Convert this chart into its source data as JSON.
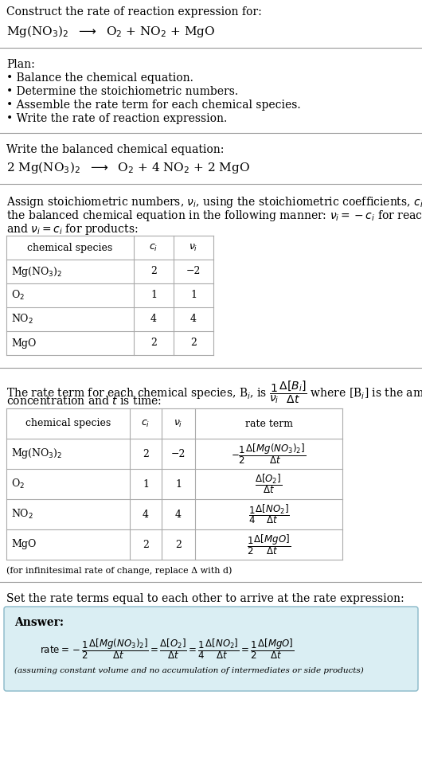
{
  "title_line1": "Construct the rate of reaction expression for:",
  "title_line2_plain": "Mg(NO",
  "plan_header": "Plan:",
  "plan_items": [
    "• Balance the chemical equation.",
    "• Determine the stoichiometric numbers.",
    "• Assemble the rate term for each chemical species.",
    "• Write the rate of reaction expression."
  ],
  "balanced_header": "Write the balanced chemical equation:",
  "balanced_eq": "2 Mg(NO$_3$)$_2$  $\\longrightarrow$  O$_2$ + 4 NO$_2$ + 2 MgO",
  "assign_text1": "Assign stoichiometric numbers, $\\nu_i$, using the stoichiometric coefficients, $c_i$, from",
  "assign_text2": "the balanced chemical equation in the following manner: $\\nu_i = -c_i$ for reactants",
  "assign_text3": "and $\\nu_i = c_i$ for products:",
  "table1_headers": [
    "chemical species",
    "$c_i$",
    "$\\nu_i$"
  ],
  "table1_rows": [
    [
      "Mg(NO$_3$)$_2$",
      "2",
      "−2"
    ],
    [
      "O$_2$",
      "1",
      "1"
    ],
    [
      "NO$_2$",
      "4",
      "4"
    ],
    [
      "MgO",
      "2",
      "2"
    ]
  ],
  "rate_text1": "The rate term for each chemical species, B$_i$, is $\\dfrac{1}{\\nu_i}\\dfrac{\\Delta[B_i]}{\\Delta t}$ where [B$_i$] is the amount",
  "rate_text2": "concentration and $t$ is time:",
  "table2_headers": [
    "chemical species",
    "$c_i$",
    "$\\nu_i$",
    "rate term"
  ],
  "table2_rows": [
    [
      "Mg(NO$_3$)$_2$",
      "2",
      "−2",
      "$-\\dfrac{1}{2}\\dfrac{\\Delta[Mg(NO_3)_2]}{\\Delta t}$"
    ],
    [
      "O$_2$",
      "1",
      "1",
      "$\\dfrac{\\Delta[O_2]}{\\Delta t}$"
    ],
    [
      "NO$_2$",
      "4",
      "4",
      "$\\dfrac{1}{4}\\dfrac{\\Delta[NO_2]}{\\Delta t}$"
    ],
    [
      "MgO",
      "2",
      "2",
      "$\\dfrac{1}{2}\\dfrac{\\Delta[MgO]}{\\Delta t}$"
    ]
  ],
  "infinitesimal_note": "(for infinitesimal rate of change, replace Δ with d)",
  "set_text": "Set the rate terms equal to each other to arrive at the rate expression:",
  "answer_label": "Answer:",
  "answer_eq": "$\\mathrm{rate} = -\\dfrac{1}{2}\\dfrac{\\Delta[Mg(NO_3)_2]}{\\Delta t} = \\dfrac{\\Delta[O_2]}{\\Delta t} = \\dfrac{1}{4}\\dfrac{\\Delta[NO_2]}{\\Delta t} = \\dfrac{1}{2}\\dfrac{\\Delta[MgO]}{\\Delta t}$",
  "answer_note": "(assuming constant volume and no accumulation of intermediates or side products)",
  "bg_color": "#ffffff",
  "answer_box_color": "#daeef3",
  "answer_box_border": "#89b8c8",
  "table_border_color": "#aaaaaa",
  "text_color": "#000000",
  "line_color": "#999999",
  "font_size": 10,
  "small_font_size": 9
}
